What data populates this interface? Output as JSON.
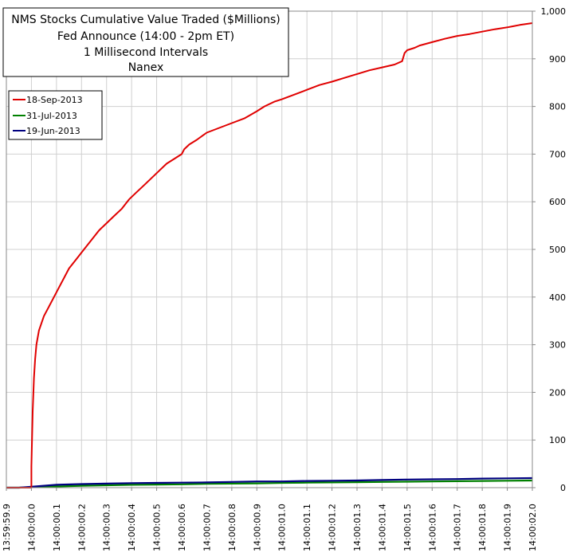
{
  "chart_data": {
    "type": "line",
    "title_lines": [
      "NMS Stocks Cumulative Value Traded ($Millions)",
      "Fed Announce (14:00 - 2pm ET)",
      "1 Millisecond Intervals",
      "Nanex"
    ],
    "x_tick_labels": [
      "13:59:59.9",
      "14:00:00.0",
      "14:00:00.1",
      "14:00:00.2",
      "14:00:00.3",
      "14:00:00.4",
      "14:00:00.5",
      "14:00:00.6",
      "14:00:00.7",
      "14:00:00.8",
      "14:00:00.9",
      "14:00:01.0",
      "14:00:01.1",
      "14:00:01.2",
      "14:00:01.3",
      "14:00:01.4",
      "14:00:01.5",
      "14:00:01.6",
      "14:00:01.7",
      "14:00:01.8",
      "14:00:01.9",
      "14:00:02.0"
    ],
    "xlim_seconds_from_start": [
      0,
      2.1
    ],
    "y_ticks": [
      0,
      100,
      200,
      300,
      400,
      500,
      600,
      700,
      800,
      900,
      1000
    ],
    "y_tick_labels": [
      "0",
      "100",
      "200",
      "300",
      "400",
      "500",
      "600",
      "700",
      "800",
      "900",
      "1,000"
    ],
    "ylim": [
      0,
      1000
    ],
    "y_axis_side": "right",
    "grid": true,
    "legend_position": "top-left",
    "series": [
      {
        "name": "18-Sep-2013",
        "color": "#e00000",
        "x": [
          0,
          0.1,
          0.1,
          0.105,
          0.11,
          0.115,
          0.12,
          0.13,
          0.14,
          0.15,
          0.17,
          0.19,
          0.21,
          0.23,
          0.25,
          0.28,
          0.31,
          0.34,
          0.37,
          0.4,
          0.43,
          0.46,
          0.49,
          0.52,
          0.55,
          0.58,
          0.61,
          0.64,
          0.67,
          0.7,
          0.71,
          0.73,
          0.76,
          0.8,
          0.85,
          0.9,
          0.95,
          1.0,
          1.03,
          1.07,
          1.1,
          1.15,
          1.2,
          1.25,
          1.3,
          1.35,
          1.4,
          1.45,
          1.5,
          1.55,
          1.58,
          1.59,
          1.6,
          1.63,
          1.65,
          1.7,
          1.75,
          1.8,
          1.85,
          1.9,
          1.95,
          2.0,
          2.02,
          2.05,
          2.1
        ],
        "values": [
          0,
          0,
          45,
          160,
          230,
          270,
          300,
          330,
          345,
          360,
          380,
          400,
          420,
          440,
          460,
          480,
          500,
          520,
          540,
          555,
          570,
          585,
          605,
          620,
          635,
          650,
          665,
          680,
          690,
          700,
          710,
          720,
          730,
          745,
          755,
          765,
          775,
          790,
          800,
          810,
          815,
          825,
          835,
          845,
          852,
          860,
          868,
          876,
          882,
          888,
          895,
          912,
          918,
          923,
          928,
          935,
          942,
          948,
          952,
          957,
          962,
          966,
          968,
          971,
          975
        ]
      },
      {
        "name": "31-Jul-2013",
        "color": "#008000",
        "x": [
          0,
          0.05,
          0.1,
          0.2,
          0.3,
          0.4,
          0.5,
          0.6,
          0.7,
          0.8,
          0.9,
          1.0,
          1.1,
          1.2,
          1.3,
          1.4,
          1.5,
          1.6,
          1.7,
          1.8,
          1.9,
          2.0,
          2.1
        ],
        "values": [
          0,
          0,
          1,
          2.5,
          4,
          5,
          6,
          6.5,
          7,
          8,
          8.5,
          9,
          10,
          10.5,
          11,
          11.5,
          12,
          12.5,
          13,
          13.5,
          14,
          14.5,
          15
        ]
      },
      {
        "name": "19-Jun-2013",
        "color": "#000080",
        "x": [
          0,
          0.05,
          0.1,
          0.15,
          0.2,
          0.3,
          0.4,
          0.5,
          0.6,
          0.7,
          0.8,
          0.9,
          1.0,
          1.1,
          1.2,
          1.3,
          1.4,
          1.5,
          1.6,
          1.7,
          1.8,
          1.9,
          2.0,
          2.1
        ],
        "values": [
          0,
          0,
          2,
          4,
          6,
          7.5,
          8.5,
          9.5,
          10,
          10.5,
          11,
          12,
          13,
          13,
          14,
          14.5,
          15,
          16,
          17,
          17.5,
          18,
          19,
          19.5,
          20
        ]
      }
    ]
  }
}
